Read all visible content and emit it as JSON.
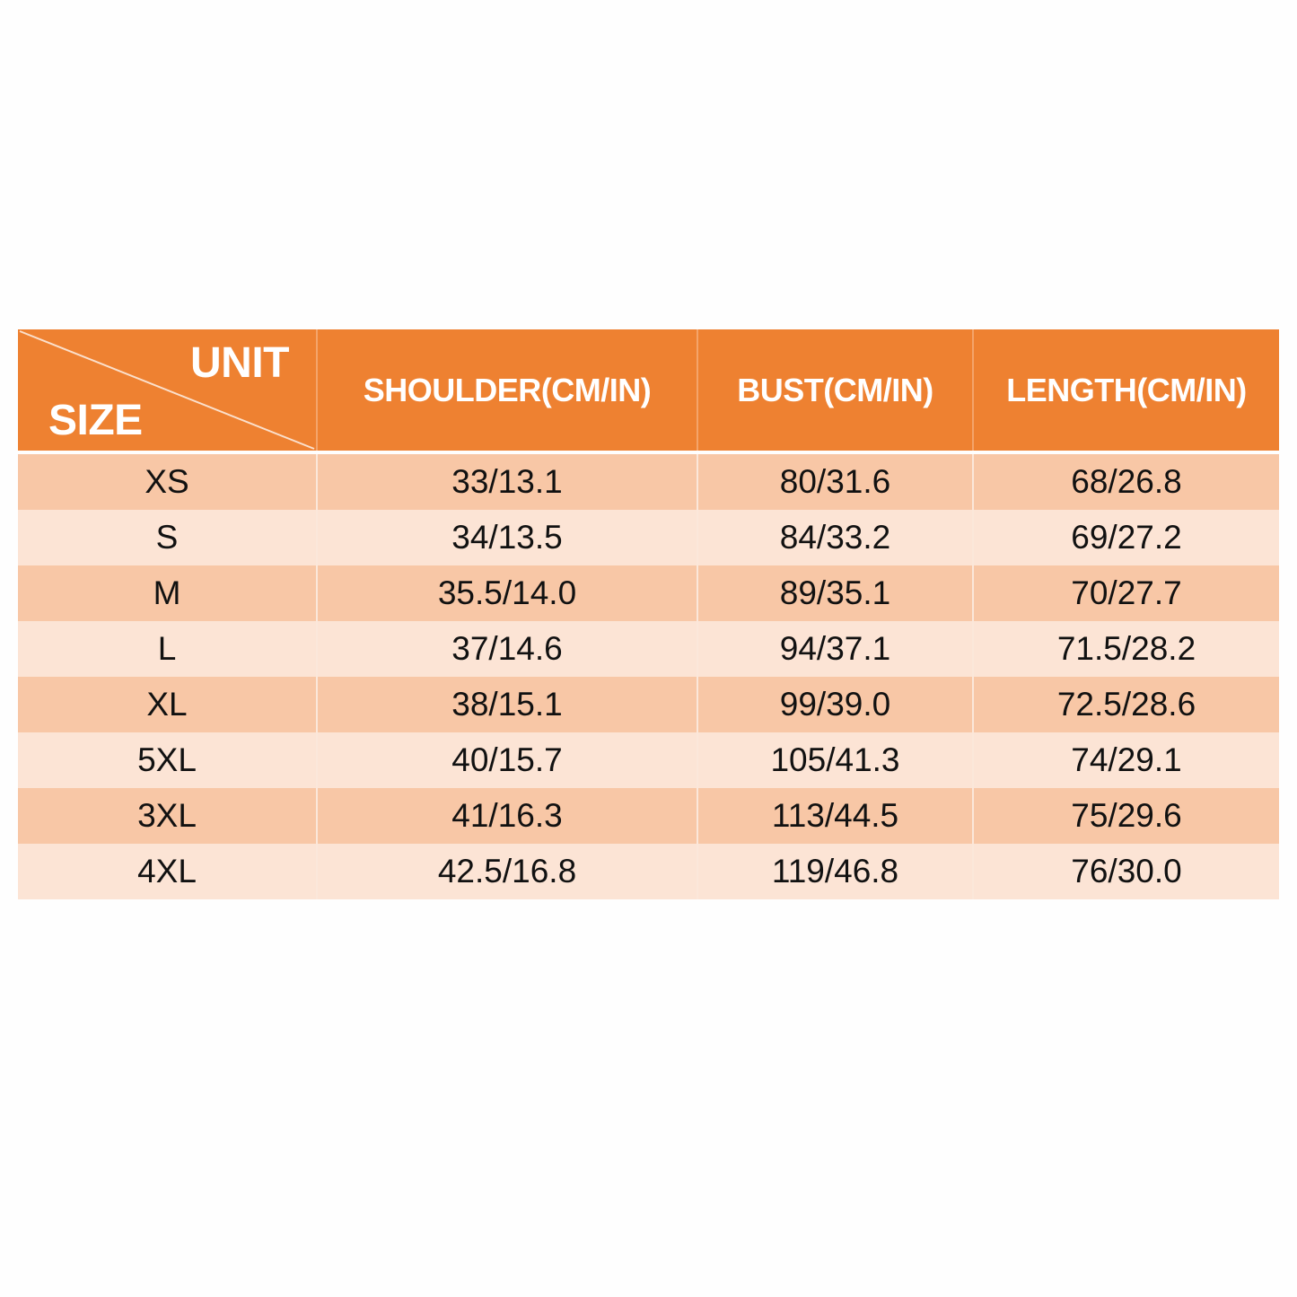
{
  "header": {
    "corner_top": "UNIT",
    "corner_bottom": "SIZE",
    "columns": [
      "SHOULDER(CM/IN)",
      "BUST(CM/IN)",
      "LENGTH(CM/IN)"
    ]
  },
  "colors": {
    "header": "#ee8131",
    "row_dark": "#f8c7a6",
    "row_light": "#fce4d5",
    "header_text": "#ffffff"
  },
  "rows": [
    {
      "size": "XS",
      "shoulder": "33/13.1",
      "bust": "80/31.6",
      "length": "68/26.8"
    },
    {
      "size": "S",
      "shoulder": "34/13.5",
      "bust": "84/33.2",
      "length": "69/27.2"
    },
    {
      "size": "M",
      "shoulder": "35.5/14.0",
      "bust": "89/35.1",
      "length": "70/27.7"
    },
    {
      "size": "L",
      "shoulder": "37/14.6",
      "bust": "94/37.1",
      "length": "71.5/28.2"
    },
    {
      "size": "XL",
      "shoulder": "38/15.1",
      "bust": "99/39.0",
      "length": "72.5/28.6"
    },
    {
      "size": "5XL",
      "shoulder": "40/15.7",
      "bust": "105/41.3",
      "length": "74/29.1"
    },
    {
      "size": "3XL",
      "shoulder": "41/16.3",
      "bust": "113/44.5",
      "length": "75/29.6"
    },
    {
      "size": "4XL",
      "shoulder": "42.5/16.8",
      "bust": "119/46.8",
      "length": "76/30.0"
    }
  ]
}
